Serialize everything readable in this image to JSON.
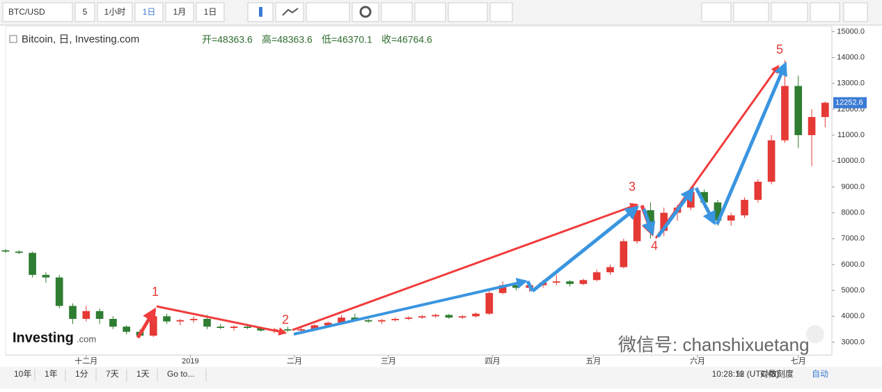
{
  "toolbar": {
    "symbol": "BTC/USD",
    "buttons": [
      "5",
      "1小时",
      "1日",
      "1月",
      "1日"
    ]
  },
  "legend": {
    "name": "Bitcoin, 日, Investing.com",
    "ohlc": [
      "开=48363.6",
      "高=48363.6",
      "低=46370.1",
      "收=46764.6"
    ]
  },
  "logo": {
    "main": "Investing",
    "suffix": ".com"
  },
  "watermark": "微信号: chanshixuetang",
  "footer": {
    "ranges": [
      "10年",
      "1年",
      "1分",
      "7天",
      "1天",
      "Go to..."
    ],
    "time": "10:28:12 (UTC+8)",
    "options": [
      "%",
      "对数刻度",
      "自动"
    ]
  },
  "chart_data": {
    "type": "candlestick",
    "xlim": [
      0,
      246
    ],
    "ylim": [
      2500,
      15200
    ],
    "grid": false,
    "xticks": [
      {
        "value": 24,
        "label": "十二月"
      },
      {
        "value": 55,
        "label": "2019"
      },
      {
        "value": 86,
        "label": "二月"
      },
      {
        "value": 114,
        "label": "三月"
      },
      {
        "value": 145,
        "label": "四月"
      },
      {
        "value": 175,
        "label": "五月"
      },
      {
        "value": 206,
        "label": "六月"
      },
      {
        "value": 236,
        "label": "七月"
      }
    ],
    "yticks": [
      {
        "value": 3000,
        "label": "3000.0"
      },
      {
        "value": 4000,
        "label": "4000.0"
      },
      {
        "value": 5000,
        "label": "5000.0"
      },
      {
        "value": 6000,
        "label": "6000.0"
      },
      {
        "value": 7000,
        "label": "7000.0"
      },
      {
        "value": 8000,
        "label": "8000.0"
      },
      {
        "value": 9000,
        "label": "9000.0"
      },
      {
        "value": 10000,
        "label": "10000.0"
      },
      {
        "value": 11000,
        "label": "11000.0"
      },
      {
        "value": 12000,
        "label": "12000.0"
      },
      {
        "value": 13000,
        "label": "13000.0"
      },
      {
        "value": 14000,
        "label": "14000.0"
      },
      {
        "value": 15000,
        "label": "15000.0"
      }
    ],
    "up_color": "#e53935",
    "down_color": "#2e7d32",
    "x": [
      0,
      4,
      8,
      12,
      16,
      20,
      24,
      28,
      32,
      36,
      40,
      44,
      48,
      52,
      56,
      60,
      64,
      68,
      72,
      76,
      80,
      84,
      88,
      92,
      96,
      100,
      104,
      108,
      112,
      116,
      120,
      124,
      128,
      132,
      136,
      140,
      144,
      148,
      152,
      156,
      160,
      164,
      168,
      172,
      176,
      180,
      184,
      188,
      192,
      196,
      200,
      204,
      208,
      212,
      216,
      220,
      224,
      228,
      232,
      236,
      240,
      244
    ],
    "open": [
      6550,
      6500,
      6450,
      5600,
      5500,
      4400,
      3900,
      4200,
      3900,
      3600,
      3400,
      3250,
      4000,
      3800,
      3850,
      3900,
      3600,
      3550,
      3600,
      3550,
      3450,
      3500,
      3450,
      3500,
      3650,
      3750,
      3950,
      3850,
      3800,
      3850,
      3900,
      3950,
      4000,
      4050,
      3950,
      4000,
      4100,
      4900,
      5200,
      5100,
      5200,
      5300,
      5350,
      5250,
      5400,
      5700,
      5900,
      6900,
      8100,
      7300,
      8000,
      8200,
      8800,
      8400,
      7700,
      7900,
      8500,
      9200,
      10800,
      12900,
      11000,
      11700
    ],
    "high": [
      6600,
      6550,
      6500,
      5700,
      5600,
      4500,
      4400,
      4300,
      4000,
      3650,
      3500,
      4200,
      4100,
      3900,
      4000,
      4050,
      3700,
      3650,
      3700,
      3600,
      3550,
      3600,
      3550,
      3700,
      3800,
      4050,
      4100,
      3900,
      3900,
      3950,
      4000,
      4050,
      4100,
      4100,
      4050,
      4150,
      5000,
      5350,
      5300,
      5250,
      5400,
      5600,
      5400,
      5450,
      5800,
      6000,
      7000,
      8300,
      8400,
      8200,
      8300,
      9000,
      8900,
      8500,
      8000,
      8600,
      9300,
      11000,
      13900,
      13300,
      12000,
      12300
    ],
    "low": [
      6450,
      6400,
      5500,
      5300,
      4300,
      3700,
      3800,
      3700,
      3500,
      3300,
      3200,
      3200,
      3700,
      3650,
      3750,
      3500,
      3500,
      3450,
      3500,
      3400,
      3350,
      3400,
      3380,
      3450,
      3600,
      3700,
      3800,
      3750,
      3700,
      3800,
      3850,
      3900,
      3950,
      3900,
      3900,
      3950,
      4050,
      4850,
      5000,
      4950,
      5100,
      5200,
      5150,
      5200,
      5350,
      5600,
      5850,
      6800,
      7000,
      7100,
      7700,
      8100,
      8200,
      7500,
      7500,
      7800,
      8400,
      9100,
      10700,
      10500,
      9800,
      11300
    ],
    "close": [
      6500,
      6450,
      5600,
      5500,
      4400,
      3900,
      4200,
      3900,
      3600,
      3400,
      3250,
      4000,
      3800,
      3850,
      3900,
      3600,
      3550,
      3600,
      3550,
      3450,
      3500,
      3450,
      3500,
      3650,
      3750,
      3950,
      3850,
      3800,
      3850,
      3900,
      3950,
      4000,
      4050,
      3950,
      4000,
      4100,
      4900,
      5200,
      5100,
      5200,
      5300,
      5350,
      5250,
      5400,
      5700,
      5900,
      6900,
      8100,
      7300,
      8000,
      8200,
      8800,
      8400,
      7700,
      7900,
      8500,
      9200,
      10800,
      12900,
      11000,
      11700,
      12252.6
    ],
    "last_price": 12252.6,
    "annotations": [
      "1",
      "2",
      "3",
      "4",
      "5"
    ]
  }
}
